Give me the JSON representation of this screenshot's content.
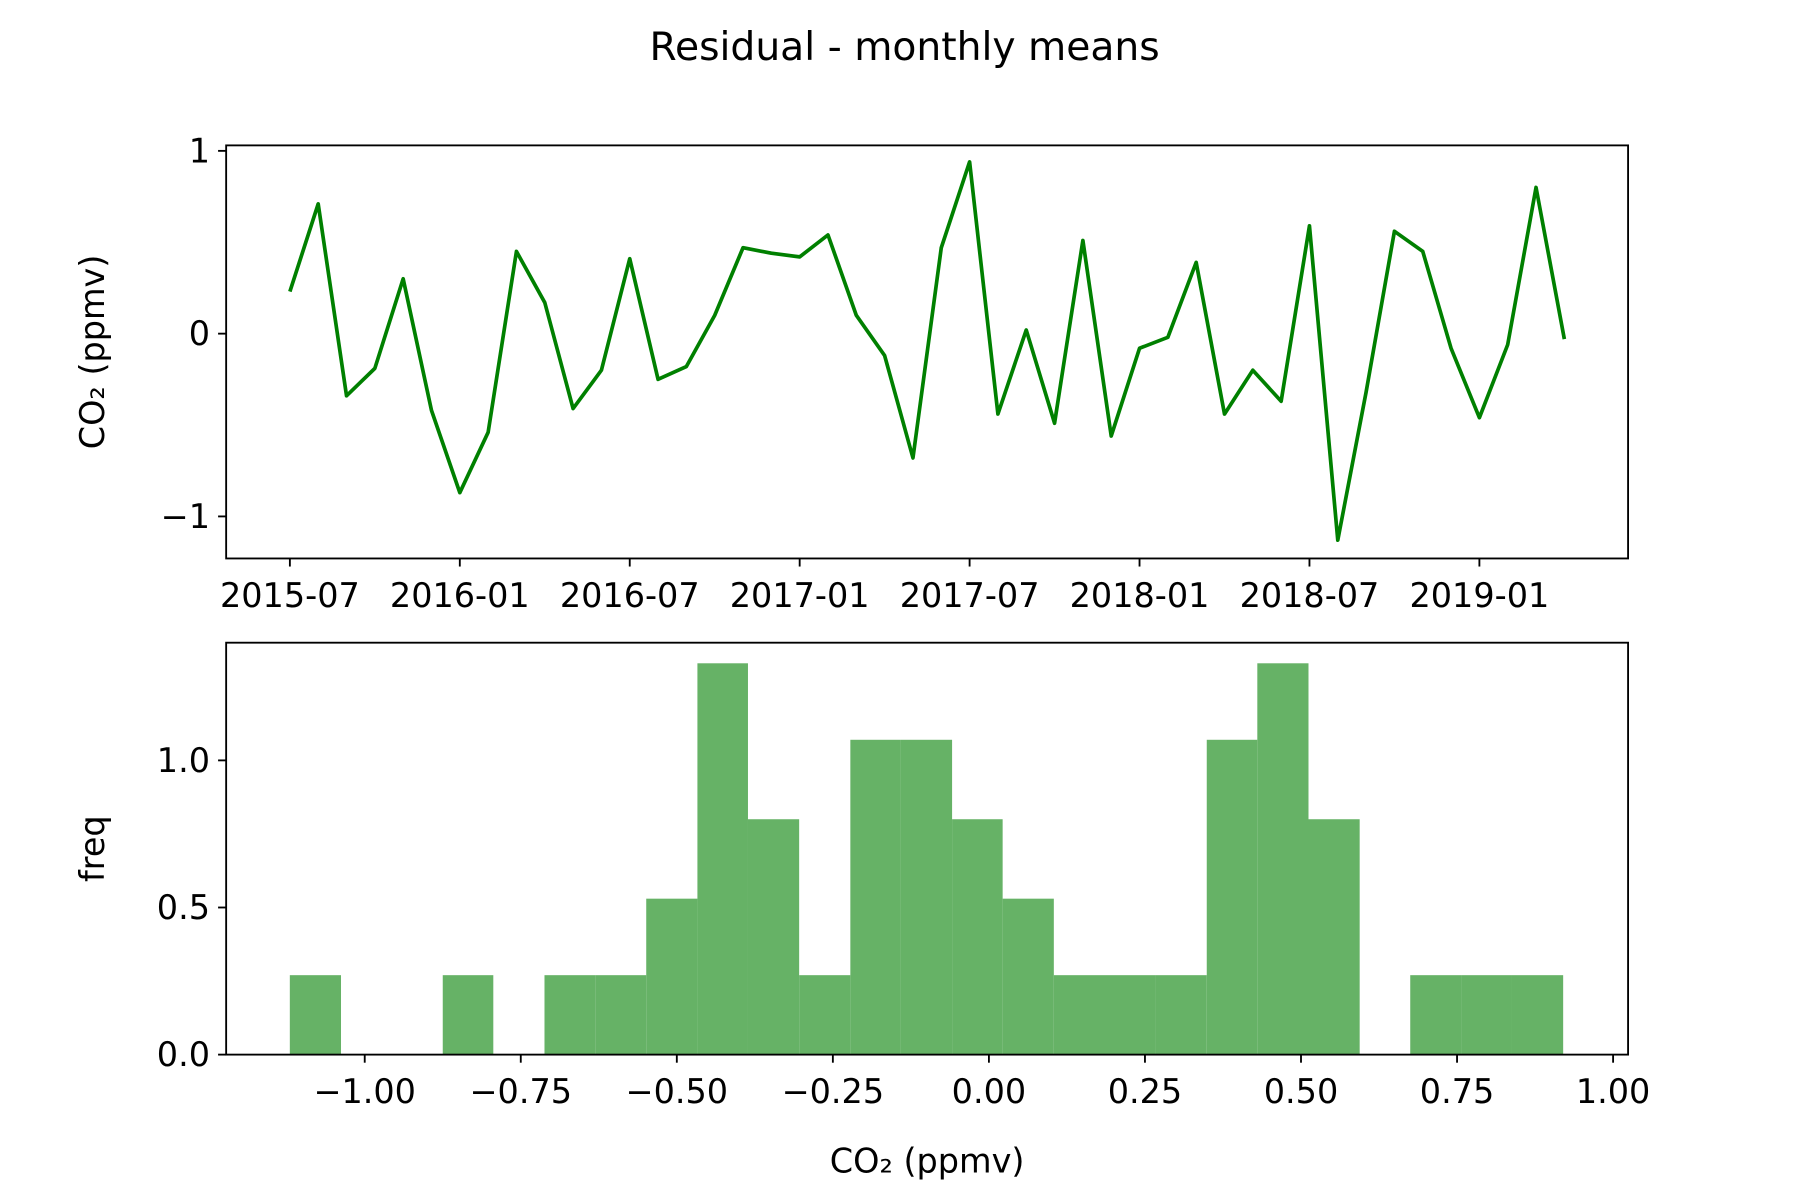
{
  "title": "Residual - monthly means",
  "chart_data": [
    {
      "type": "line",
      "ylabel": "CO₂ (ppmv)",
      "x": [
        "2015-07",
        "2015-08",
        "2015-09",
        "2015-10",
        "2015-11",
        "2015-12",
        "2016-01",
        "2016-02",
        "2016-03",
        "2016-04",
        "2016-05",
        "2016-06",
        "2016-07",
        "2016-08",
        "2016-09",
        "2016-10",
        "2016-11",
        "2016-12",
        "2017-01",
        "2017-02",
        "2017-03",
        "2017-04",
        "2017-05",
        "2017-06",
        "2017-07",
        "2017-08",
        "2017-09",
        "2017-10",
        "2017-11",
        "2017-12",
        "2018-01",
        "2018-02",
        "2018-03",
        "2018-04",
        "2018-05",
        "2018-06",
        "2018-07",
        "2018-08",
        "2018-09",
        "2018-10",
        "2018-11",
        "2018-12",
        "2019-01",
        "2019-02",
        "2019-03",
        "2019-04"
      ],
      "values": [
        0.23,
        0.71,
        -0.34,
        -0.19,
        0.3,
        -0.42,
        -0.87,
        -0.54,
        0.45,
        0.17,
        -0.41,
        -0.2,
        0.41,
        -0.25,
        -0.18,
        0.1,
        0.47,
        0.44,
        0.42,
        0.54,
        0.1,
        -0.12,
        -0.68,
        0.47,
        0.94,
        -0.44,
        0.02,
        -0.49,
        0.51,
        -0.56,
        -0.08,
        -0.02,
        0.39,
        -0.44,
        -0.2,
        -0.37,
        0.59,
        -1.13,
        -0.32,
        0.56,
        0.45,
        -0.08,
        -0.46,
        -0.06,
        0.8,
        -0.03
      ],
      "color": "#008000",
      "xticks": [
        "2015-07",
        "2016-01",
        "2016-07",
        "2017-01",
        "2017-07",
        "2018-01",
        "2018-07",
        "2019-01"
      ],
      "ylim": [
        -1.23,
        1.03
      ],
      "yticks": [
        {
          "value": -1,
          "label": "−1"
        },
        0,
        1
      ]
    },
    {
      "type": "histogram",
      "xlabel": "CO₂ (ppmv)",
      "ylabel": "freq",
      "bins": [
        -1.12,
        -1.038,
        -0.957,
        -0.875,
        -0.794,
        -0.712,
        -0.63,
        -0.549,
        -0.467,
        -0.386,
        -0.304,
        -0.222,
        -0.141,
        -0.059,
        0.022,
        0.104,
        0.186,
        0.267,
        0.349,
        0.43,
        0.512,
        0.594,
        0.675,
        0.757,
        0.838,
        0.92
      ],
      "values": [
        0.27,
        0,
        0,
        0.27,
        0,
        0.27,
        0.27,
        0.53,
        1.33,
        0.8,
        0.27,
        1.07,
        1.07,
        0.8,
        0.53,
        0.27,
        0.27,
        0.27,
        1.07,
        1.33,
        0.8,
        0,
        0.27,
        0.27,
        0.27
      ],
      "color": "#66b266",
      "xlim": [
        -1.222,
        1.024
      ],
      "ylim": [
        0,
        1.4
      ],
      "xticks": [
        {
          "value": -1,
          "label": "−1.00"
        },
        {
          "value": -0.75,
          "label": "−0.75"
        },
        {
          "value": -0.5,
          "label": "−0.50"
        },
        {
          "value": -0.25,
          "label": "−0.25"
        },
        {
          "value": 0,
          "label": "0.00"
        },
        0.25,
        {
          "value": 0.5,
          "label": "0.50"
        },
        0.75,
        {
          "value": 1,
          "label": "1.00"
        }
      ],
      "yticks": [
        {
          "value": 0,
          "label": "0.0"
        },
        0.5,
        {
          "value": 1,
          "label": "1.0"
        }
      ]
    }
  ]
}
